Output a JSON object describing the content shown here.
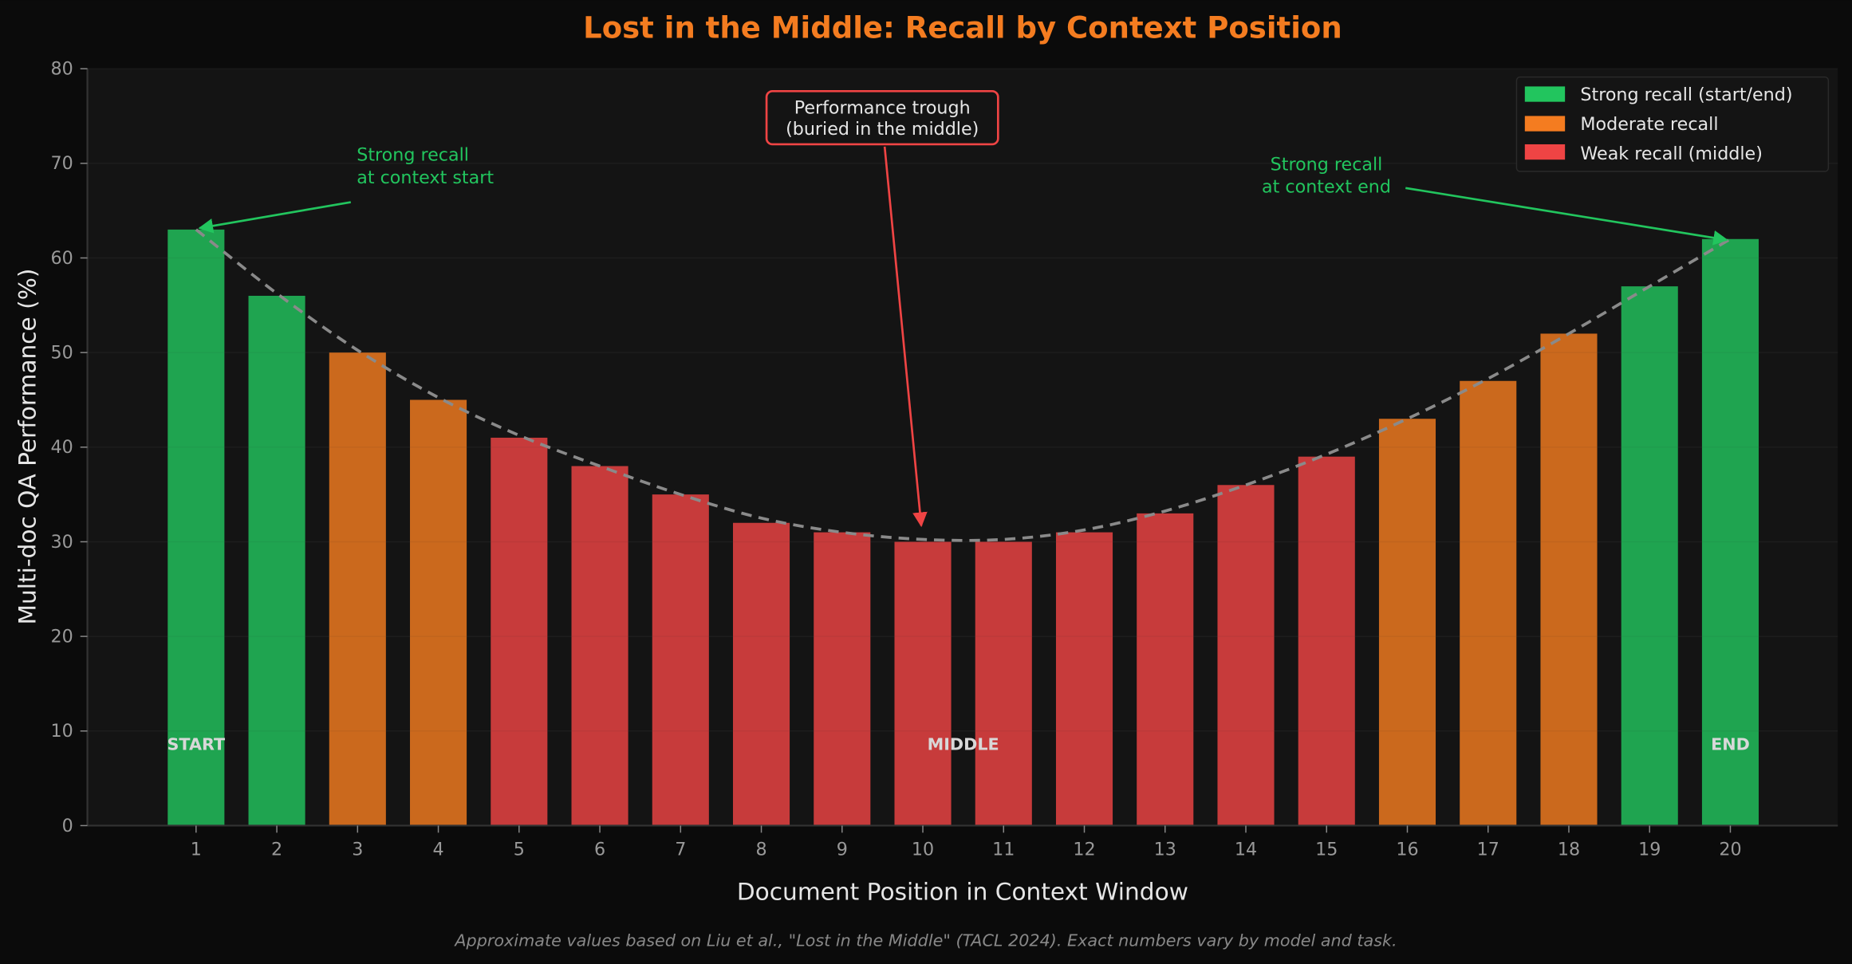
{
  "chart_data": {
    "type": "bar",
    "title": "Lost in the Middle: Recall by Context Position",
    "xlabel": "Document Position in Context Window",
    "ylabel": "Multi-doc QA Performance (%)",
    "ylim": [
      0,
      80
    ],
    "yticks": [
      "0",
      "10",
      "20",
      "30",
      "40",
      "50",
      "60",
      "70",
      "80"
    ],
    "categories": [
      "1",
      "2",
      "3",
      "4",
      "5",
      "6",
      "7",
      "8",
      "9",
      "10",
      "11",
      "12",
      "13",
      "14",
      "15",
      "16",
      "17",
      "18",
      "19",
      "20"
    ],
    "values": [
      63,
      56,
      50,
      45,
      41,
      38,
      35,
      32,
      31,
      30,
      30,
      31,
      33,
      36,
      39,
      43,
      47,
      52,
      57,
      62
    ],
    "bar_groups": [
      "strong",
      "strong",
      "moderate",
      "moderate",
      "weak",
      "weak",
      "weak",
      "weak",
      "weak",
      "weak",
      "weak",
      "weak",
      "weak",
      "weak",
      "weak",
      "moderate",
      "moderate",
      "moderate",
      "strong",
      "strong"
    ],
    "colors": {
      "strong": "#22c55e",
      "moderate": "#f47c20",
      "weak": "#ef4444",
      "title": "#f47c20",
      "background": "#0b0b0b",
      "plot_background": "#141414",
      "trend": "#8a8a8a"
    },
    "grid": true,
    "trend_line": "dashed",
    "legend": {
      "placement": "top-right",
      "entries": [
        {
          "key": "strong",
          "label": "Strong recall (start/end)"
        },
        {
          "key": "moderate",
          "label": "Moderate recall"
        },
        {
          "key": "weak",
          "label": "Weak recall (middle)"
        }
      ]
    },
    "annotations": {
      "start": {
        "lines": [
          "Strong recall",
          "at context start"
        ],
        "target_x": 1,
        "target_y": 63
      },
      "trough": {
        "lines": [
          "Performance trough",
          "(buried in the middle)"
        ],
        "target_x": 10,
        "target_y": 31
      },
      "end": {
        "lines": [
          "Strong recall",
          "at context end"
        ],
        "target_x": 20,
        "target_y": 62
      }
    },
    "bar_labels": [
      {
        "text": "START",
        "x": 1
      },
      {
        "text": "MIDDLE",
        "x": 10.5
      },
      {
        "text": "END",
        "x": 20
      }
    ],
    "footnote": "Approximate values based on Liu et al., \"Lost in the Middle\" (TACL 2024). Exact numbers vary by model and task."
  }
}
